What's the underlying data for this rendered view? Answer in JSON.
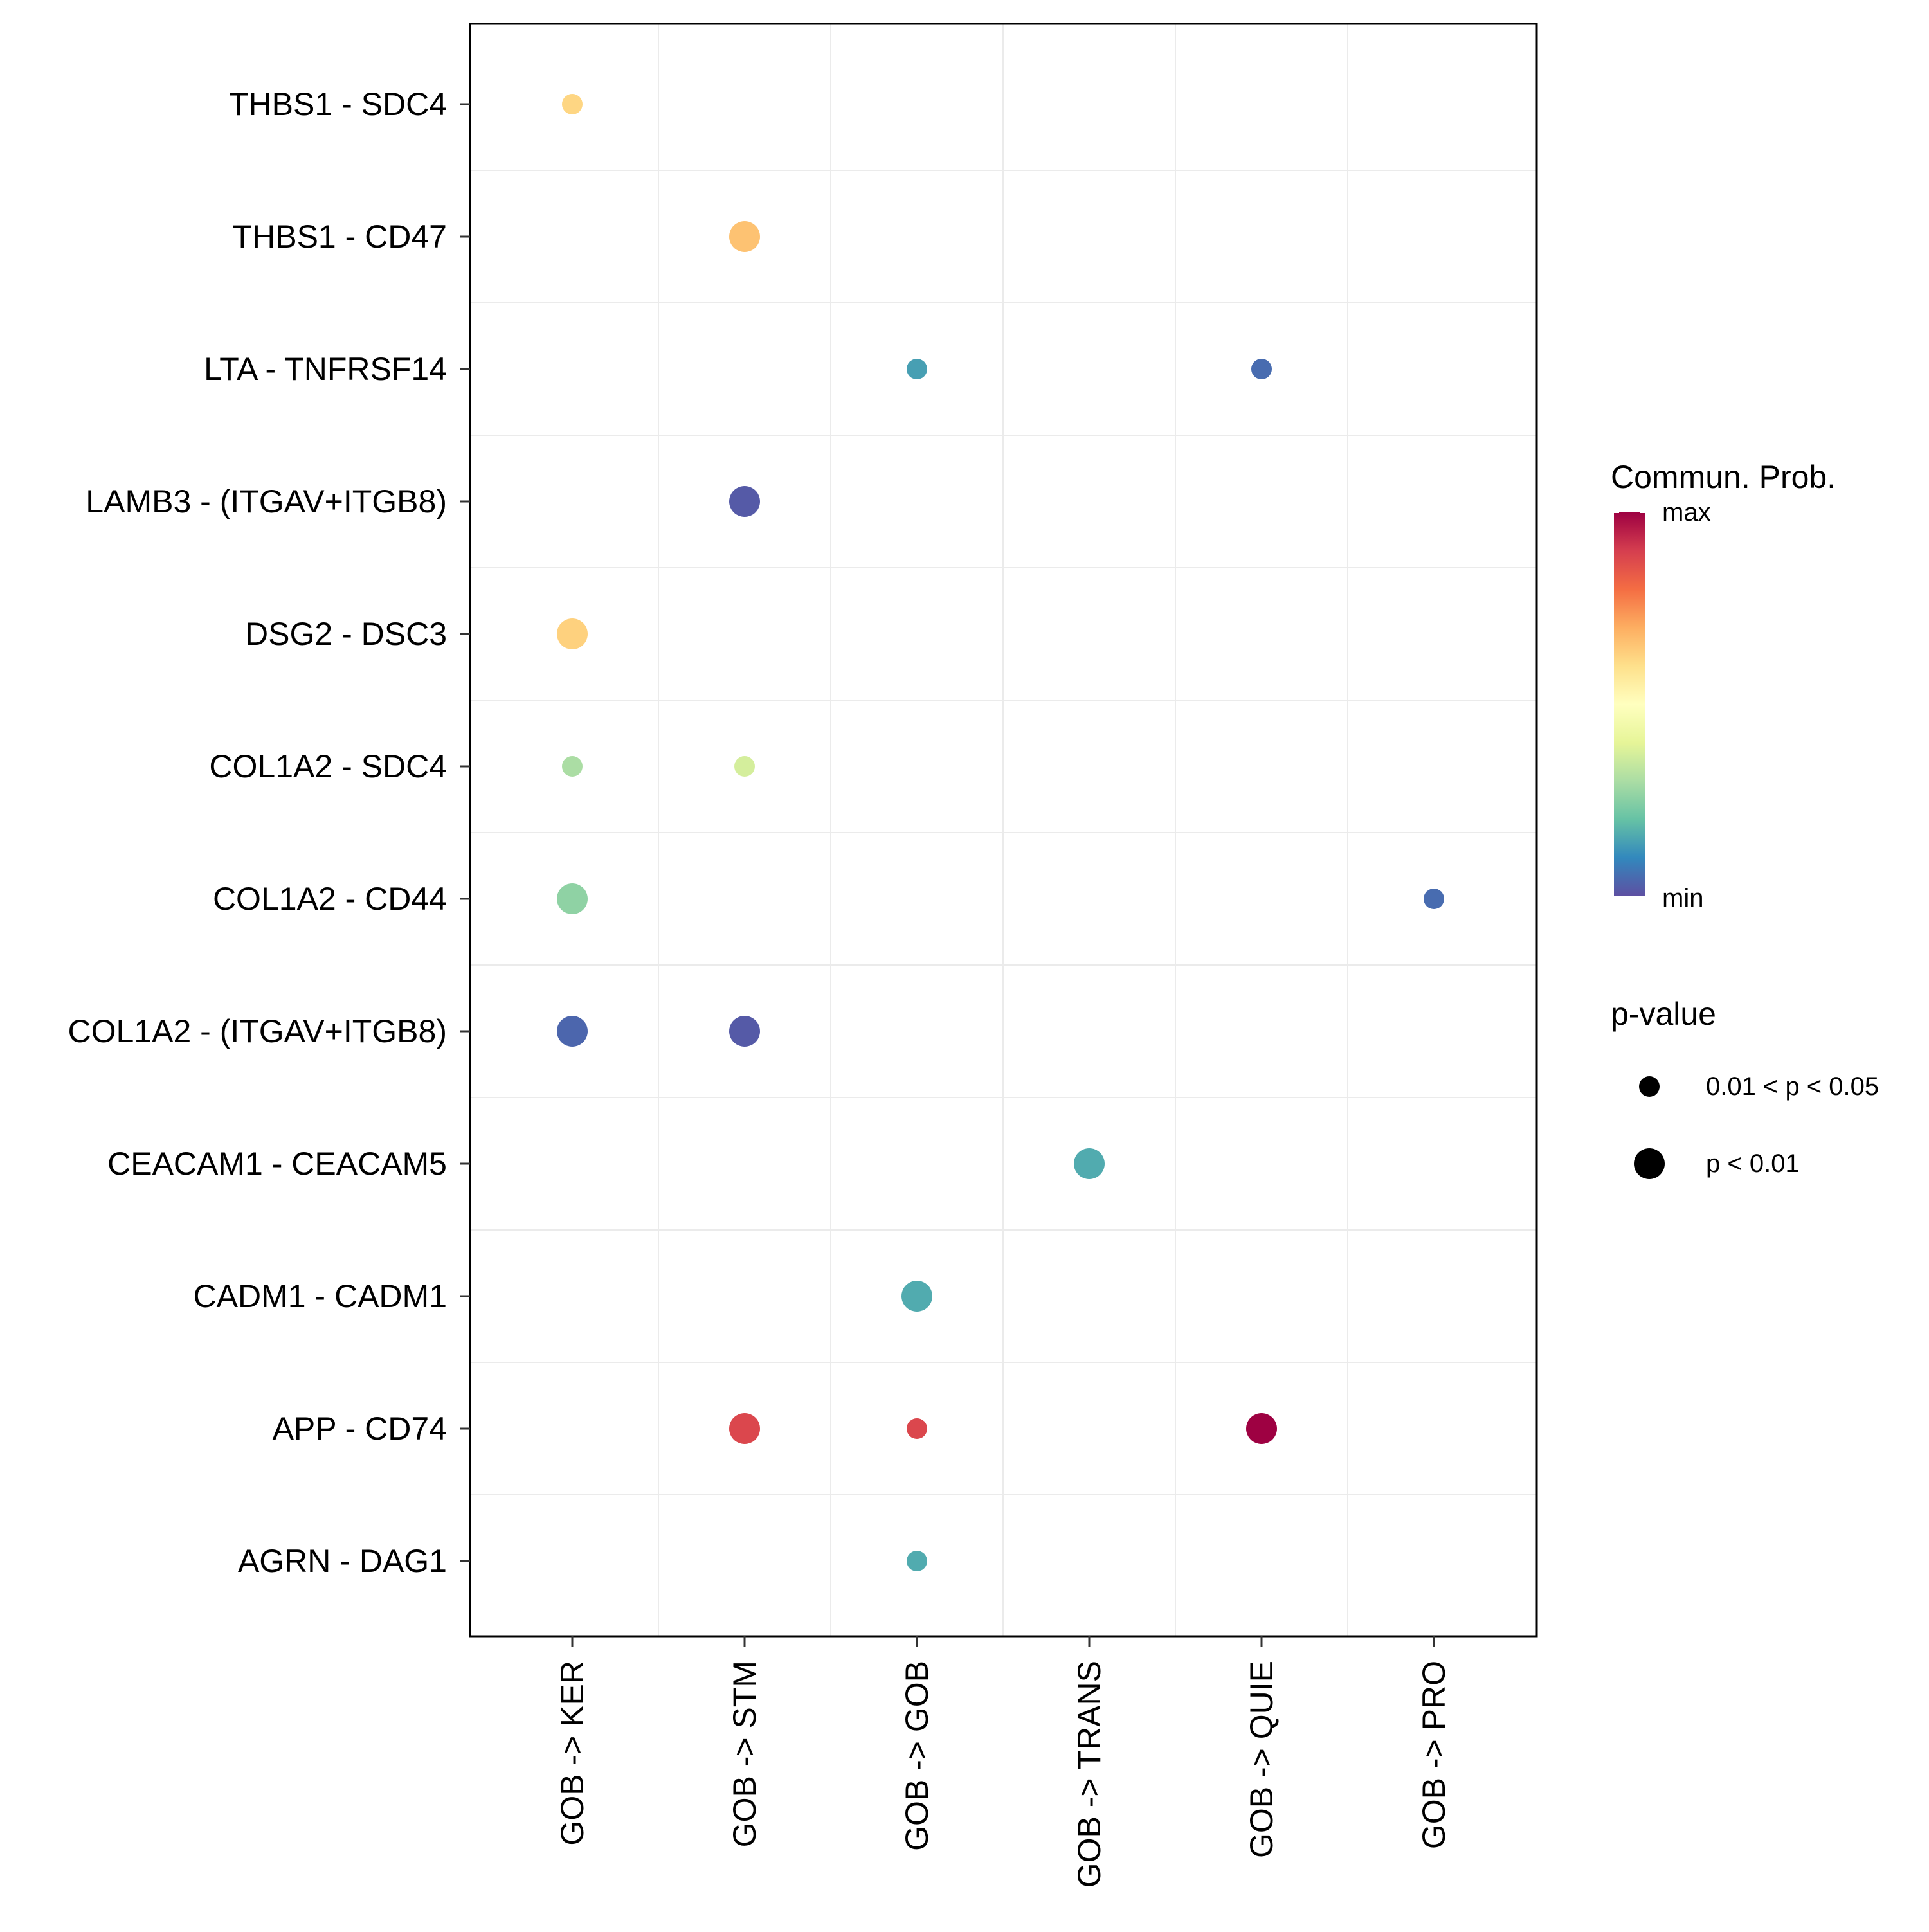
{
  "chart_data": {
    "type": "scatter",
    "title": "",
    "xlabel": "",
    "ylabel": "",
    "x_categories": [
      "GOB -> KER",
      "GOB -> STM",
      "GOB -> GOB",
      "GOB -> TRANS",
      "GOB -> QUIE",
      "GOB -> PRO"
    ],
    "y_categories": [
      "THBS1 - SDC4",
      "THBS1 - CD47",
      "LTA - TNFRSF14",
      "LAMB3 - (ITGAV+ITGB8)",
      "DSG2 - DSC3",
      "COL1A2 - SDC4",
      "COL1A2 - CD44",
      "COL1A2 - (ITGAV+ITGB8)",
      "CEACAM1 - CEACAM5",
      "CADM1 - CADM1",
      "APP - CD74",
      "AGRN - DAG1"
    ],
    "grid": true,
    "points": [
      {
        "x": "GOB -> KER",
        "y": "THBS1 - SDC4",
        "prob": 0.62,
        "pval": "0.01 < p < 0.05"
      },
      {
        "x": "GOB -> STM",
        "y": "THBS1 - CD47",
        "prob": 0.66,
        "pval": "p < 0.01"
      },
      {
        "x": "GOB -> GOB",
        "y": "LTA - TNFRSF14",
        "prob": 0.14,
        "pval": "0.01 < p < 0.05"
      },
      {
        "x": "GOB -> QUIE",
        "y": "LTA - TNFRSF14",
        "prob": 0.05,
        "pval": "0.01 < p < 0.05"
      },
      {
        "x": "GOB -> STM",
        "y": "LAMB3 - (ITGAV+ITGB8)",
        "prob": 0.02,
        "pval": "p < 0.01"
      },
      {
        "x": "GOB -> KER",
        "y": "DSG2 - DSC3",
        "prob": 0.63,
        "pval": "p < 0.01"
      },
      {
        "x": "GOB -> KER",
        "y": "COL1A2 - SDC4",
        "prob": 0.3,
        "pval": "0.01 < p < 0.05"
      },
      {
        "x": "GOB -> STM",
        "y": "COL1A2 - SDC4",
        "prob": 0.37,
        "pval": "0.01 < p < 0.05"
      },
      {
        "x": "GOB -> KER",
        "y": "COL1A2 - CD44",
        "prob": 0.26,
        "pval": "p < 0.01"
      },
      {
        "x": "GOB -> PRO",
        "y": "COL1A2 - CD44",
        "prob": 0.05,
        "pval": "0.01 < p < 0.05"
      },
      {
        "x": "GOB -> KER",
        "y": "COL1A2 - (ITGAV+ITGB8)",
        "prob": 0.04,
        "pval": "p < 0.01"
      },
      {
        "x": "GOB -> STM",
        "y": "COL1A2 - (ITGAV+ITGB8)",
        "prob": 0.02,
        "pval": "p < 0.01"
      },
      {
        "x": "GOB -> TRANS",
        "y": "CEACAM1 - CEACAM5",
        "prob": 0.16,
        "pval": "p < 0.01"
      },
      {
        "x": "GOB -> GOB",
        "y": "CADM1 - CADM1",
        "prob": 0.16,
        "pval": "p < 0.01"
      },
      {
        "x": "GOB -> STM",
        "y": "APP - CD74",
        "prob": 0.88,
        "pval": "p < 0.01"
      },
      {
        "x": "GOB -> GOB",
        "y": "APP - CD74",
        "prob": 0.88,
        "pval": "0.01 < p < 0.05"
      },
      {
        "x": "GOB -> QUIE",
        "y": "APP - CD74",
        "prob": 1.0,
        "pval": "p < 0.01"
      },
      {
        "x": "GOB -> GOB",
        "y": "AGRN - DAG1",
        "prob": 0.16,
        "pval": "0.01 < p < 0.05"
      }
    ],
    "color_legend": {
      "title": "Commun. Prob.",
      "max_label": "max",
      "min_label": "min"
    },
    "size_legend": {
      "title": "p-value",
      "labels": [
        "0.01 < p < 0.05",
        "p < 0.01"
      ]
    },
    "palette": [
      "#5E4FA2",
      "#3288BD",
      "#66C2A5",
      "#ABDDA4",
      "#E6F598",
      "#FFFFBF",
      "#FEE08B",
      "#FDAE61",
      "#F46D43",
      "#D53E4F",
      "#9E0142"
    ]
  }
}
